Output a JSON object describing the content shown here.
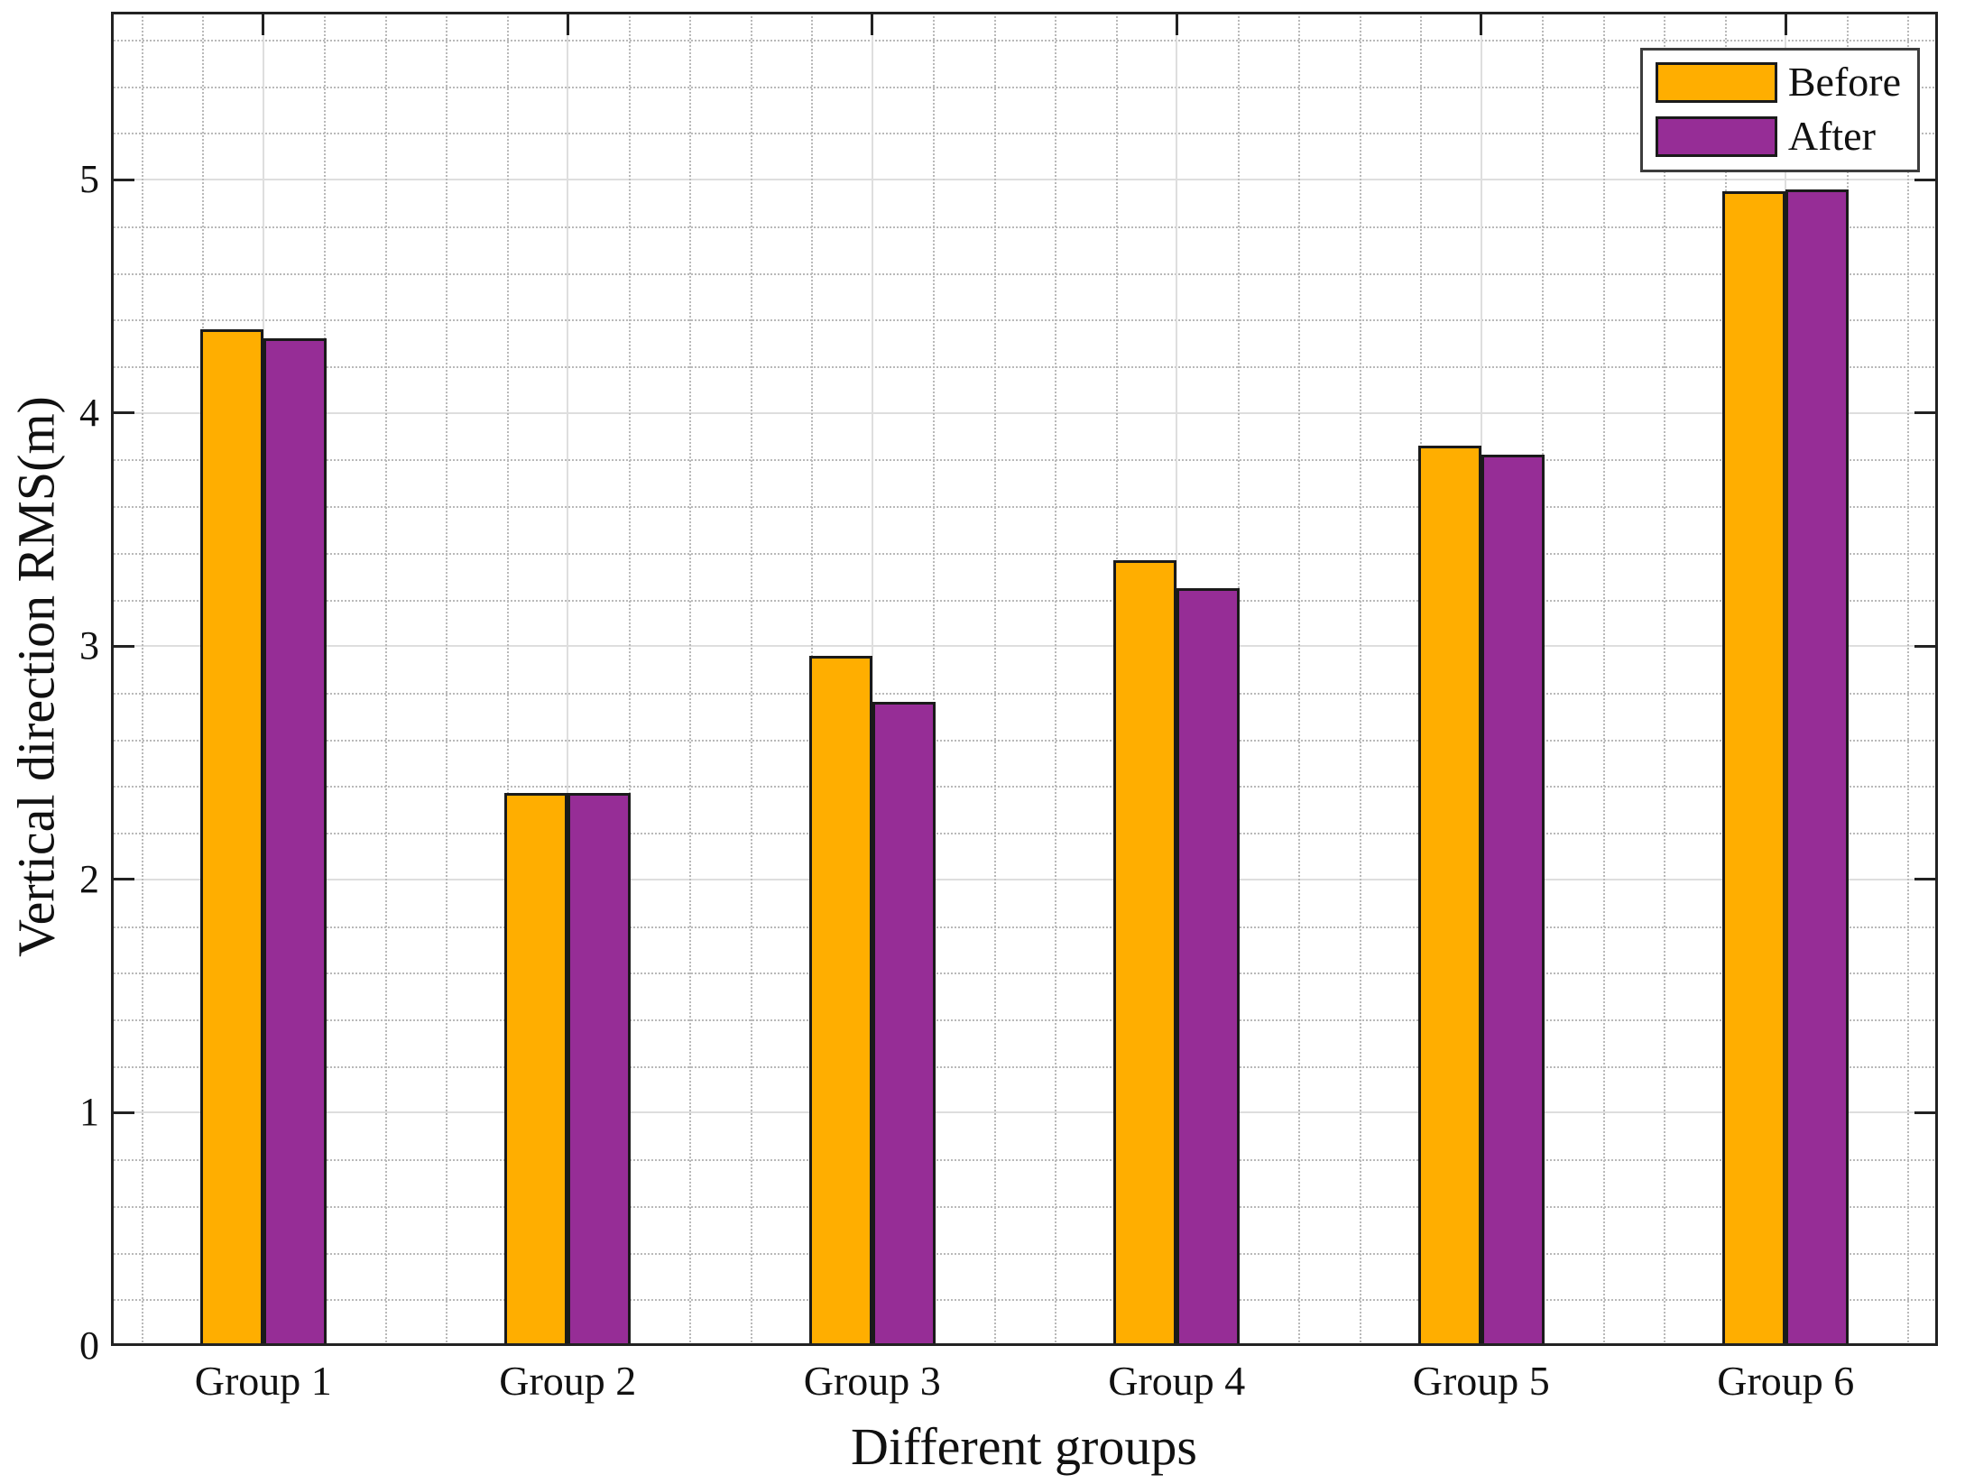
{
  "chart_data": {
    "type": "bar",
    "title": "",
    "xlabel": "Different groups",
    "ylabel": "Vertical direction RMS(m)",
    "categories": [
      "Group 1",
      "Group 2",
      "Group 3",
      "Group 4",
      "Group 5",
      "Group 6"
    ],
    "series": [
      {
        "name": "Before",
        "color": "#FFAE00",
        "values": [
          4.36,
          2.37,
          2.96,
          3.37,
          3.86,
          4.95
        ]
      },
      {
        "name": "After",
        "color": "#962D96",
        "values": [
          4.32,
          2.37,
          2.76,
          3.25,
          3.82,
          4.96
        ]
      }
    ],
    "bar_edge_color": "#1a1a1a",
    "ylim": [
      0,
      5.72
    ],
    "yticks": [
      "0",
      "1",
      "2",
      "3",
      "4",
      "5"
    ],
    "grid": {
      "major": "solid",
      "minor": "dotted",
      "minor_step": 0.2
    },
    "legend": {
      "position": "top-right",
      "entries": [
        "Before",
        "After"
      ]
    }
  }
}
